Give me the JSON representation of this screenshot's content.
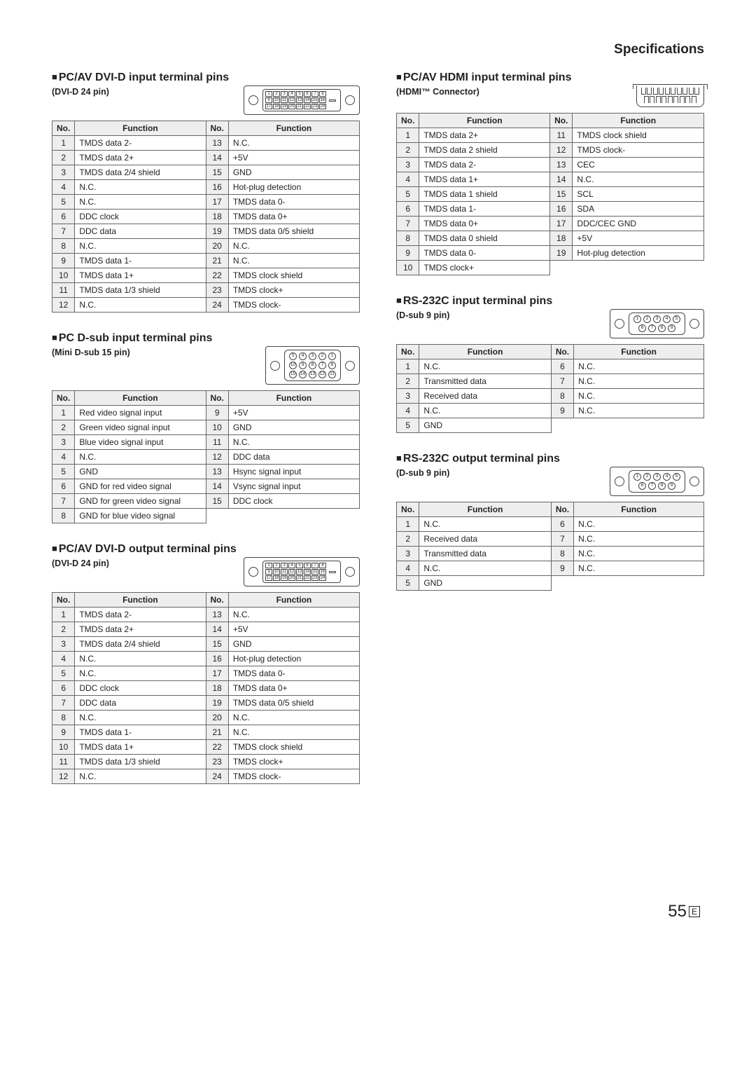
{
  "page_title": "Specifications",
  "page_number": "55",
  "page_suffix": "E",
  "headers": {
    "no": "No.",
    "func": "Function"
  },
  "sections": [
    {
      "title": "PC/AV DVI-D input terminal pins",
      "subtitle": "(DVI-D 24 pin)",
      "connector": "dvi24",
      "left": [
        [
          "1",
          "TMDS data 2-"
        ],
        [
          "2",
          "TMDS data 2+"
        ],
        [
          "3",
          "TMDS data 2/4 shield"
        ],
        [
          "4",
          "N.C."
        ],
        [
          "5",
          "N.C."
        ],
        [
          "6",
          "DDC clock"
        ],
        [
          "7",
          "DDC data"
        ],
        [
          "8",
          "N.C."
        ],
        [
          "9",
          "TMDS data 1-"
        ],
        [
          "10",
          "TMDS data 1+"
        ],
        [
          "11",
          "TMDS data 1/3 shield"
        ],
        [
          "12",
          "N.C."
        ]
      ],
      "right": [
        [
          "13",
          "N.C."
        ],
        [
          "14",
          "+5V"
        ],
        [
          "15",
          "GND"
        ],
        [
          "16",
          "Hot-plug detection"
        ],
        [
          "17",
          "TMDS data 0-"
        ],
        [
          "18",
          "TMDS data 0+"
        ],
        [
          "19",
          "TMDS data 0/5 shield"
        ],
        [
          "20",
          "N.C."
        ],
        [
          "21",
          "N.C."
        ],
        [
          "22",
          "TMDS clock shield"
        ],
        [
          "23",
          "TMDS clock+"
        ],
        [
          "24",
          "TMDS clock-"
        ]
      ]
    },
    {
      "title": "PC D-sub input terminal pins",
      "subtitle": "(Mini D-sub 15 pin)",
      "connector": "dsub15",
      "left": [
        [
          "1",
          "Red video signal input"
        ],
        [
          "2",
          "Green video signal input"
        ],
        [
          "3",
          "Blue video signal input"
        ],
        [
          "4",
          "N.C."
        ],
        [
          "5",
          "GND"
        ],
        [
          "6",
          "GND for red video signal"
        ],
        [
          "7",
          "GND for green video signal"
        ],
        [
          "8",
          "GND for blue video signal"
        ]
      ],
      "right": [
        [
          "9",
          "+5V"
        ],
        [
          "10",
          "GND"
        ],
        [
          "11",
          "N.C."
        ],
        [
          "12",
          "DDC data"
        ],
        [
          "13",
          "Hsync signal input"
        ],
        [
          "14",
          "Vsync signal input"
        ],
        [
          "15",
          "DDC clock"
        ]
      ]
    },
    {
      "title": "PC/AV DVI-D output terminal pins",
      "subtitle": "(DVI-D 24 pin)",
      "connector": "dvi24",
      "left": [
        [
          "1",
          "TMDS data 2-"
        ],
        [
          "2",
          "TMDS data 2+"
        ],
        [
          "3",
          "TMDS data 2/4 shield"
        ],
        [
          "4",
          "N.C."
        ],
        [
          "5",
          "N.C."
        ],
        [
          "6",
          "DDC clock"
        ],
        [
          "7",
          "DDC data"
        ],
        [
          "8",
          "N.C."
        ],
        [
          "9",
          "TMDS data 1-"
        ],
        [
          "10",
          "TMDS data 1+"
        ],
        [
          "11",
          "TMDS data 1/3 shield"
        ],
        [
          "12",
          "N.C."
        ]
      ],
      "right": [
        [
          "13",
          "N.C."
        ],
        [
          "14",
          "+5V"
        ],
        [
          "15",
          "GND"
        ],
        [
          "16",
          "Hot-plug detection"
        ],
        [
          "17",
          "TMDS data 0-"
        ],
        [
          "18",
          "TMDS data 0+"
        ],
        [
          "19",
          "TMDS data 0/5 shield"
        ],
        [
          "20",
          "N.C."
        ],
        [
          "21",
          "N.C."
        ],
        [
          "22",
          "TMDS clock shield"
        ],
        [
          "23",
          "TMDS clock+"
        ],
        [
          "24",
          "TMDS clock-"
        ]
      ]
    },
    {
      "title": "PC/AV HDMI input terminal pins",
      "subtitle": "(HDMI™ Connector)",
      "connector": "hdmi",
      "left": [
        [
          "1",
          "TMDS data 2+"
        ],
        [
          "2",
          "TMDS data 2 shield"
        ],
        [
          "3",
          "TMDS data 2-"
        ],
        [
          "4",
          "TMDS data 1+"
        ],
        [
          "5",
          "TMDS data 1 shield"
        ],
        [
          "6",
          "TMDS data 1-"
        ],
        [
          "7",
          "TMDS data 0+"
        ],
        [
          "8",
          "TMDS data 0 shield"
        ],
        [
          "9",
          "TMDS data 0-"
        ],
        [
          "10",
          "TMDS clock+"
        ]
      ],
      "right": [
        [
          "11",
          "TMDS clock shield"
        ],
        [
          "12",
          "TMDS clock-"
        ],
        [
          "13",
          "CEC"
        ],
        [
          "14",
          "N.C."
        ],
        [
          "15",
          "SCL"
        ],
        [
          "16",
          "SDA"
        ],
        [
          "17",
          "DDC/CEC GND"
        ],
        [
          "18",
          "+5V"
        ],
        [
          "19",
          "Hot-plug detection"
        ]
      ]
    },
    {
      "title": "RS-232C input terminal pins",
      "subtitle": "(D-sub 9 pin)",
      "connector": "dsub9",
      "left": [
        [
          "1",
          "N.C."
        ],
        [
          "2",
          "Transmitted data"
        ],
        [
          "3",
          "Received data"
        ],
        [
          "4",
          "N.C."
        ],
        [
          "5",
          "GND"
        ]
      ],
      "right": [
        [
          "6",
          "N.C."
        ],
        [
          "7",
          "N.C."
        ],
        [
          "8",
          "N.C."
        ],
        [
          "9",
          "N.C."
        ]
      ]
    },
    {
      "title": "RS-232C output terminal pins",
      "subtitle": "(D-sub 9 pin)",
      "connector": "dsub9",
      "left": [
        [
          "1",
          "N.C."
        ],
        [
          "2",
          "Received data"
        ],
        [
          "3",
          "Transmitted data"
        ],
        [
          "4",
          "N.C."
        ],
        [
          "5",
          "GND"
        ]
      ],
      "right": [
        [
          "6",
          "N.C."
        ],
        [
          "7",
          "N.C."
        ],
        [
          "8",
          "N.C."
        ],
        [
          "9",
          "N.C."
        ]
      ]
    }
  ],
  "layout": {
    "left_col": [
      0,
      1,
      2
    ],
    "right_col": [
      3,
      4,
      5
    ]
  }
}
